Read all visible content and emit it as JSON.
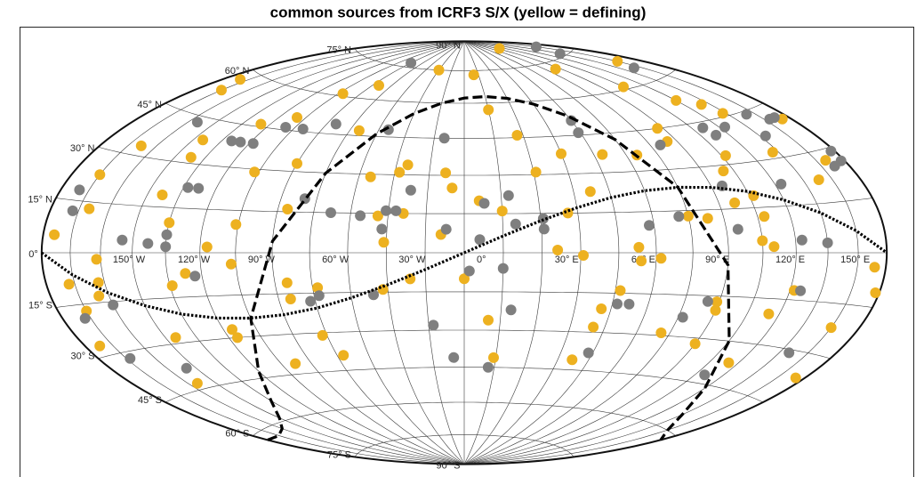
{
  "chart_data": {
    "type": "sky-map",
    "title": "common sources from ICRF3 S/X (yellow = defining)",
    "projection": "hammer",
    "lonlim": [
      -180,
      180
    ],
    "latlim": [
      -90,
      90
    ],
    "meridian_step": 15,
    "grid": true,
    "lonticks": [
      {
        "value": -150,
        "label": "150° W"
      },
      {
        "value": -120,
        "label": "120° W"
      },
      {
        "value": -90,
        "label": "90° W"
      },
      {
        "value": -60,
        "label": "60° W"
      },
      {
        "value": -30,
        "label": "30° W"
      },
      {
        "value": 0,
        "label": "0°"
      },
      {
        "value": 30,
        "label": "30° E"
      },
      {
        "value": 60,
        "label": "60° E"
      },
      {
        "value": 90,
        "label": "90° E"
      },
      {
        "value": 120,
        "label": "120° E"
      },
      {
        "value": 150,
        "label": "150° E"
      }
    ],
    "latticks": [
      {
        "value": 90,
        "label": "90° N"
      },
      {
        "value": 75,
        "label": "75° N"
      },
      {
        "value": 60,
        "label": "60° N"
      },
      {
        "value": 45,
        "label": "45° N"
      },
      {
        "value": 30,
        "label": "30° N"
      },
      {
        "value": 15,
        "label": "15° N"
      },
      {
        "value": 0,
        "label": "0°"
      },
      {
        "value": -15,
        "label": "15° S"
      },
      {
        "value": -30,
        "label": "30° S"
      },
      {
        "value": -45,
        "label": "45° S"
      },
      {
        "value": -60,
        "label": "60° S"
      },
      {
        "value": -75,
        "label": "75° S"
      },
      {
        "value": -90,
        "label": "90° S"
      }
    ],
    "series": [
      {
        "color": "#edb120",
        "points": [
          [
            -170,
            57
          ],
          [
            -165,
            53
          ],
          [
            -110,
            46
          ],
          [
            -95,
            50
          ],
          [
            -87,
            61
          ],
          [
            -70,
            66
          ],
          [
            -30,
            75
          ],
          [
            10,
            73
          ],
          [
            110,
            84
          ],
          [
            100,
            72
          ],
          [
            165,
            68
          ],
          [
            120,
            61
          ],
          [
            135,
            53
          ],
          [
            145,
            50
          ],
          [
            148,
            46
          ],
          [
            175,
            40
          ],
          [
            15,
            57
          ],
          [
            27,
            46
          ],
          [
            -55,
            47
          ],
          [
            -158,
            33
          ],
          [
            -127,
            32
          ],
          [
            -130,
            38
          ],
          [
            -75,
            33
          ],
          [
            -92,
            29
          ],
          [
            -165,
            23
          ],
          [
            -128,
            19
          ],
          [
            -28,
            31
          ],
          [
            -25,
            34
          ],
          [
            -40,
            29
          ],
          [
            -8,
            31
          ],
          [
            31,
            31
          ],
          [
            45,
            38
          ],
          [
            64,
            37
          ],
          [
            80,
            36
          ],
          [
            102,
            45
          ],
          [
            100,
            40
          ],
          [
            115,
            28
          ],
          [
            122,
            33
          ],
          [
            147,
            32
          ],
          [
            170,
            27
          ],
          [
            122,
            19
          ],
          [
            112,
            17
          ],
          [
            98,
            12
          ],
          [
            123,
            12
          ],
          [
            158,
            22
          ],
          [
            52,
            23
          ],
          [
            41,
            15
          ],
          [
            6,
            20
          ],
          [
            15,
            16
          ],
          [
            -5,
            25
          ],
          [
            -24,
            15
          ],
          [
            -34,
            14
          ],
          [
            -71,
            16
          ],
          [
            -91,
            10
          ],
          [
            -120,
            10
          ],
          [
            -102,
            2
          ],
          [
            -92,
            -4
          ],
          [
            -112,
            -7
          ],
          [
            -160,
            13
          ],
          [
            -152,
            -2
          ],
          [
            -153,
            -9
          ],
          [
            -174,
            5
          ],
          [
            -168,
            -9
          ],
          [
            -165,
            -17
          ],
          [
            -155,
            -13
          ],
          [
            -119,
            -11
          ],
          [
            -70,
            -17
          ],
          [
            -70,
            -11
          ],
          [
            -62,
            -31
          ],
          [
            -58,
            -13
          ],
          [
            -57,
            -39
          ],
          [
            -83,
            -41
          ],
          [
            -101,
            -27
          ],
          [
            -101,
            -30
          ],
          [
            -172,
            -27
          ],
          [
            -130,
            -28
          ],
          [
            -145,
            -43
          ],
          [
            -32,
            -14
          ],
          [
            -21,
            -10
          ],
          [
            -31,
            4
          ],
          [
            -9,
            7
          ],
          [
            0,
            -10
          ],
          [
            10,
            -26
          ],
          [
            14,
            -41
          ],
          [
            36,
            1
          ],
          [
            46,
            -1
          ],
          [
            68,
            2
          ],
          [
            77,
            -2
          ],
          [
            69,
            -3
          ],
          [
            62,
            -14
          ],
          [
            56,
            -21
          ],
          [
            55,
            -28
          ],
          [
            86,
            -29
          ],
          [
            52,
            -41
          ],
          [
            105,
            -32
          ],
          [
            105,
            -20
          ],
          [
            104,
            -17
          ],
          [
            130,
            -20
          ],
          [
            137,
            -12
          ],
          [
            120,
            4
          ],
          [
            125,
            2
          ],
          [
            174,
            -4
          ],
          [
            178,
            -11
          ],
          [
            165,
            -22
          ],
          [
            175,
            -37
          ],
          [
            130,
            -37
          ],
          [
            90,
            13
          ]
        ]
      },
      {
        "color": "#7f7f7f",
        "points": [
          [
            -75,
            77
          ],
          [
            165,
            80
          ],
          [
            150,
            76
          ],
          [
            160,
            65
          ],
          [
            60,
            51
          ],
          [
            59,
            46
          ],
          [
            95,
            39
          ],
          [
            126,
            43
          ],
          [
            128,
            40
          ],
          [
            138,
            42
          ],
          [
            160,
            44
          ],
          [
            168,
            41
          ],
          [
            172,
            41
          ],
          [
            153,
            37
          ],
          [
            178,
            29
          ],
          [
            178,
            26
          ],
          [
            172,
            25
          ],
          [
            -145,
            43
          ],
          [
            -115,
            39
          ],
          [
            -110,
            39
          ],
          [
            -103,
            39
          ],
          [
            -95,
            46
          ],
          [
            -85,
            46
          ],
          [
            -70,
            49
          ],
          [
            -40,
            48
          ],
          [
            -10,
            45
          ],
          [
            -118,
            22
          ],
          [
            -113,
            22
          ],
          [
            -170,
            18
          ],
          [
            -168,
            12
          ],
          [
            -65,
            20
          ],
          [
            -53,
            15
          ],
          [
            -41,
            14
          ],
          [
            -31,
            16
          ],
          [
            -27,
            16
          ],
          [
            -22,
            24
          ],
          [
            8,
            19
          ],
          [
            18,
            22
          ],
          [
            20,
            11
          ],
          [
            31,
            13
          ],
          [
            31,
            9
          ],
          [
            6,
            5
          ],
          [
            -7,
            9
          ],
          [
            2,
            -7
          ],
          [
            15,
            -6
          ],
          [
            73,
            10
          ],
          [
            86,
            13
          ],
          [
            110,
            23
          ],
          [
            138,
            22
          ],
          [
            110,
            8
          ],
          [
            138,
            4
          ],
          [
            150,
            3
          ],
          [
            100,
            -17
          ],
          [
            67,
            -19
          ],
          [
            62,
            -19
          ],
          [
            92,
            -23
          ],
          [
            140,
            -12
          ],
          [
            155,
            -31
          ],
          [
            125,
            -42
          ],
          [
            58,
            -38
          ],
          [
            19,
            -22
          ],
          [
            -5,
            -41
          ],
          [
            12,
            -45
          ],
          [
            -13,
            -28
          ],
          [
            -36,
            -16
          ],
          [
            -58,
            -16
          ],
          [
            -62,
            -18
          ],
          [
            -108,
            -8
          ],
          [
            -120,
            2
          ],
          [
            -128,
            3
          ],
          [
            -120,
            6
          ],
          [
            -140,
            4
          ],
          [
            -150,
            -16
          ],
          [
            -168,
            -19
          ],
          [
            -163,
            -32
          ],
          [
            -140,
            -38
          ],
          [
            -32,
            9
          ]
        ]
      }
    ],
    "curves": [
      {
        "style": "dashed",
        "lon": [
          -180,
          -165,
          -150,
          -135,
          -120,
          -105,
          -90,
          -75,
          -60,
          -45,
          -30,
          -15,
          0,
          15,
          30,
          45,
          60,
          75,
          90,
          105,
          120,
          135,
          150,
          165,
          180
        ],
        "lat": [
          -62.3,
          -62.9,
          -61.8,
          -58.8,
          -53.0,
          -42.4,
          -23.5,
          4.2,
          29.9,
          46.1,
          55.1,
          59.9,
          62.3,
          62.9,
          61.8,
          58.8,
          53.0,
          42.4,
          23.5,
          -4.2,
          -29.9,
          -46.1,
          -55.1,
          -59.9,
          -62.3
        ]
      },
      {
        "style": "dotted",
        "lon": [
          -180,
          -165,
          -150,
          -135,
          -120,
          -105,
          -90,
          -75,
          -60,
          -45,
          -30,
          -15,
          0,
          15,
          30,
          45,
          60,
          75,
          90,
          105,
          120,
          135,
          150,
          165,
          180
        ],
        "lat": [
          0,
          -6.4,
          -12.2,
          -17.0,
          -20.6,
          -22.7,
          -23.4,
          -22.7,
          -20.6,
          -17.0,
          -12.2,
          -6.4,
          0,
          6.4,
          12.2,
          17.0,
          20.6,
          22.7,
          23.4,
          22.7,
          20.6,
          17.0,
          12.2,
          6.4,
          0
        ]
      }
    ]
  }
}
